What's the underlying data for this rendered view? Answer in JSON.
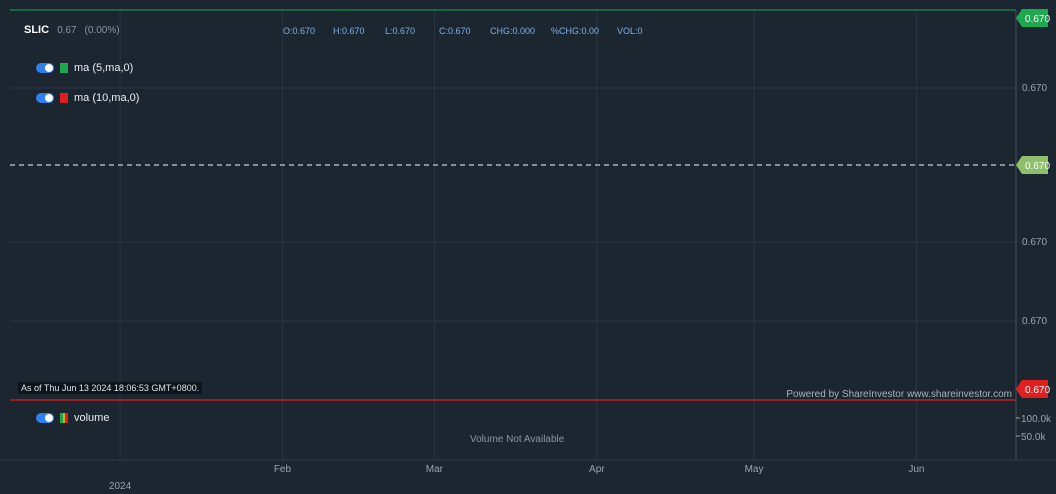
{
  "header": {
    "symbol": "SLIC",
    "last": "0.67",
    "change_pct": "(0.00%)",
    "ohlc": {
      "o": "O:0.670",
      "h": "H:0.670",
      "l": "L:0.670",
      "c": "C:0.670",
      "chg": "CHG:0.000",
      "pct_chg": "%CHG:0.00",
      "vol": "VOL:0"
    }
  },
  "legend": [
    {
      "label": "ma (5,ma,0)",
      "color": "#1fa84f",
      "enabled": true
    },
    {
      "label": "ma (10,ma,0)",
      "color": "#e02020",
      "enabled": true
    }
  ],
  "volume_legend": {
    "label": "volume",
    "colors": [
      "#1fa84f",
      "#d4b000",
      "#e02020"
    ],
    "enabled": true
  },
  "as_of": "As of Thu Jun 13 2024 18:06:53 GMT+0800.",
  "powered_by": "Powered by ShareInvestor www.shareinvestor.com",
  "volume_not_available": "Volume Not Available",
  "colors": {
    "background": "#1b2631",
    "grid": "#2a3642",
    "last_price_tag": "#1fa84f",
    "current_tag": "#8fbf6a",
    "low_tag": "#e02020"
  },
  "chart_data": {
    "type": "line",
    "title": "",
    "xlabel": "",
    "ylabel": "",
    "x_ticks": [
      {
        "label": "2024",
        "date": "2024-01-01",
        "sub": true
      },
      {
        "label": "Feb",
        "date": "2024-02-01"
      },
      {
        "label": "Mar",
        "date": "2024-03-01"
      },
      {
        "label": "Apr",
        "date": "2024-04-01"
      },
      {
        "label": "May",
        "date": "2024-05-01"
      },
      {
        "label": "Jun",
        "date": "2024-06-01"
      }
    ],
    "xlim": [
      "2023-12-11",
      "2024-06-20"
    ],
    "price_ticks": [
      "0.670",
      "0.670",
      "0.670",
      "0.670"
    ],
    "price_tags": [
      {
        "label": "0.670",
        "role": "last",
        "color": "#1fa84f"
      },
      {
        "label": "0.670",
        "role": "current",
        "color": "#8fbf6a"
      },
      {
        "label": "0.670",
        "role": "low",
        "color": "#e02020"
      }
    ],
    "volume_ticks": [
      "100.0k",
      "50.0k"
    ],
    "series": []
  }
}
